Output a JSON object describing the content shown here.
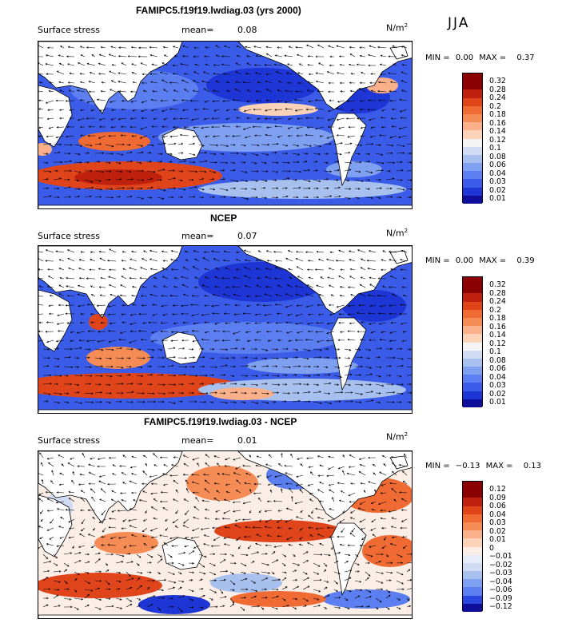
{
  "season": "JJA",
  "units_base": "N/m",
  "units_exp": "2",
  "panels": [
    {
      "title": "FAMIPC5.f19f19.lwdiag.03 (yrs 2000)",
      "variable": "Surface stress",
      "mean_label": "mean=",
      "mean_value": "0.08",
      "min_label": "MIN =",
      "min_value": "0.00",
      "max_label": "MAX =",
      "max_value": "0.37",
      "levels": [
        "0.32",
        "0.28",
        "0.24",
        "0.2",
        "0.18",
        "0.16",
        "0.14",
        "0.12",
        "0.1",
        "0.08",
        "0.06",
        "0.04",
        "0.03",
        "0.02",
        "0.01"
      ]
    },
    {
      "title": "NCEP",
      "variable": "Surface stress",
      "mean_label": "mean=",
      "mean_value": "0.07",
      "min_label": "MIN =",
      "min_value": "0.00",
      "max_label": "MAX =",
      "max_value": "0.39",
      "levels": [
        "0.32",
        "0.28",
        "0.24",
        "0.2",
        "0.18",
        "0.16",
        "0.14",
        "0.12",
        "0.1",
        "0.08",
        "0.06",
        "0.04",
        "0.03",
        "0.02",
        "0.01"
      ]
    },
    {
      "title": "FAMIPC5.f19f19.lwdiag.03 - NCEP",
      "variable": "Surface stress",
      "mean_label": "mean=",
      "mean_value": "0.01",
      "min_label": "MIN =",
      "min_value": "−0.13",
      "max_label": "MAX =",
      "max_value": "0.13",
      "levels": [
        "0.12",
        "0.09",
        "0.06",
        "0.04",
        "0.03",
        "0.02",
        "0.01",
        "0",
        "−0.01",
        "−0.02",
        "−0.03",
        "−0.04",
        "−0.06",
        "−0.09",
        "−0.12"
      ]
    }
  ],
  "colors": {
    "abs_scale": [
      "#8b0000",
      "#c0200e",
      "#e0441a",
      "#f06a33",
      "#f68c55",
      "#fab08a",
      "#fcd2b8",
      "#f4f4f4",
      "#cfdcf4",
      "#a8c0ee",
      "#7f9ff0",
      "#5b7ef0",
      "#3a5ce8",
      "#1f36d6",
      "#0e0e9a"
    ],
    "diff_scale": [
      "#8b0000",
      "#c0200e",
      "#e0441a",
      "#f06a33",
      "#f68c55",
      "#fab08a",
      "#fcd2b8",
      "#fbeee6",
      "#e6ecf8",
      "#cfdcf4",
      "#a8c0ee",
      "#7f9ff0",
      "#5b7ef0",
      "#2a48e0",
      "#0e0e9a"
    ],
    "land": "#ffffff",
    "coast": "#000000"
  }
}
